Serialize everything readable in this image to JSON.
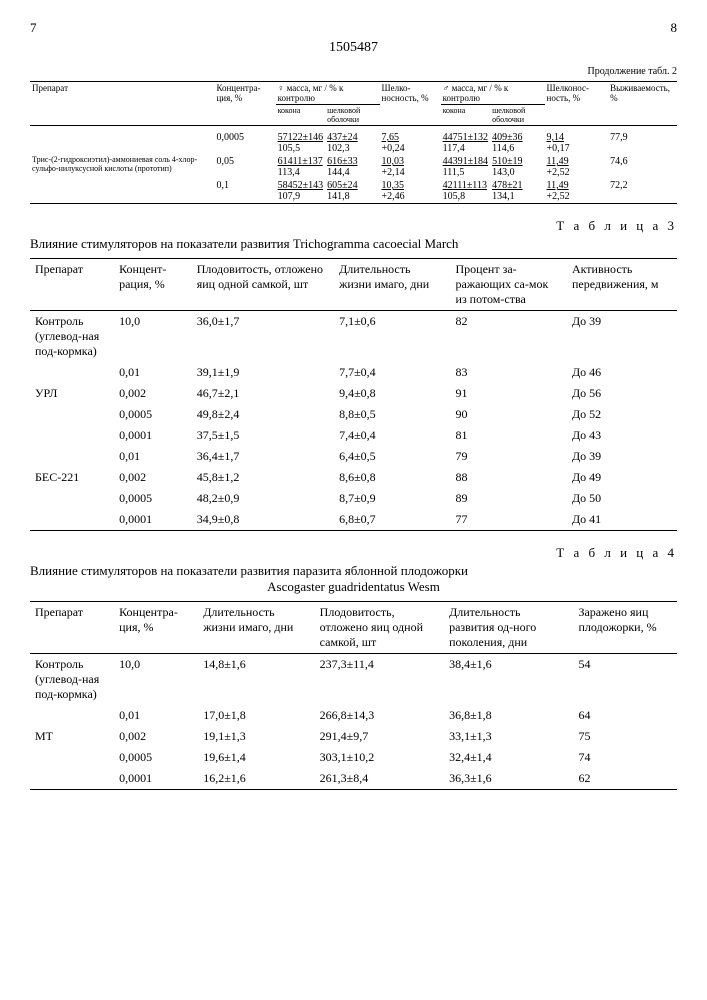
{
  "header": {
    "page_left": "7",
    "page_right": "8",
    "doc_number": "1505487",
    "continuation": "Продолжение табл. 2"
  },
  "table2": {
    "head": {
      "c1": "Препарат",
      "c2": "Концентра-ция, %",
      "c3": "♀ масса, мг",
      "c3b": "% к контролю",
      "c4": "Шелко-носность, %",
      "c5": "♂ масса, мг",
      "c5b": "% к контролю",
      "c6": "Шелконос-ность, %",
      "c7": "Выживаемость, %",
      "sub_kokona": "кокона",
      "sub_obol": "шелковой оболочки"
    },
    "drug_label": "Трис-(2-гидроксиэтил)-аммониевая соль 4-хлор-сульфо-нилуксусной кислоты (прототип)",
    "rows": [
      {
        "conc": "0,0005",
        "c3a": "57122±146",
        "c3b": "105,5",
        "c4a": "437±24",
        "c4b": "102,3",
        "c5": "7,65",
        "c5b": "+0,24",
        "c6a": "44751±132",
        "c6b": "117,4",
        "c7a": "409±36",
        "c7b": "114,6",
        "c8": "9,14",
        "c8b": "+0,17",
        "c9": "77,9"
      },
      {
        "conc": "0,05",
        "c3a": "61411±137",
        "c3b": "113,4",
        "c4a": "616±33",
        "c4b": "144,4",
        "c5": "10,03",
        "c5b": "+2,14",
        "c6a": "44391±184",
        "c6b": "111,5",
        "c7a": "510±19",
        "c7b": "143,0",
        "c8": "11,49",
        "c8b": "+2,52",
        "c9": "74,6"
      },
      {
        "conc": "0,1",
        "c3a": "58452±143",
        "c3b": "107,9",
        "c4a": "605±24",
        "c4b": "141,8",
        "c5": "10,35",
        "c5b": "+2,46",
        "c6a": "42111±113",
        "c6b": "105,8",
        "c7a": "478±21",
        "c7b": "134,1",
        "c8": "11,49",
        "c8b": "+2,52",
        "c9": "72,2"
      }
    ]
  },
  "table3": {
    "title": "Т а б л и ц а  3",
    "caption": "Влияние стимуляторов на показатели развития Trichogramma cacoecial March",
    "head": {
      "c1": "Препарат",
      "c2": "Концент-рация, %",
      "c3": "Плодовитость, отложено яиц одной самкой, шт",
      "c4": "Длительность жизни имаго, дни",
      "c5": "Процент за-ражающих са-мок из потом-ства",
      "c6": "Активность передвижения, м"
    },
    "groups": [
      {
        "label": "Контроль (углевод-ная под-кормка)",
        "rows": [
          {
            "conc": "10,0",
            "c3": "36,0±1,7",
            "c4": "7,1±0,6",
            "c5": "82",
            "c6": "До 39"
          }
        ]
      },
      {
        "label": "",
        "rows": [
          {
            "conc": "0,01",
            "c3": "39,1±1,9",
            "c4": "7,7±0,4",
            "c5": "83",
            "c6": "До 46"
          }
        ]
      },
      {
        "label": "УРЛ",
        "rows": [
          {
            "conc": "0,002",
            "c3": "46,7±2,1",
            "c4": "9,4±0,8",
            "c5": "91",
            "c6": "До 56"
          },
          {
            "conc": "0,0005",
            "c3": "49,8±2,4",
            "c4": "8,8±0,5",
            "c5": "90",
            "c6": "До 52"
          },
          {
            "conc": "0,0001",
            "c3": "37,5±1,5",
            "c4": "7,4±0,4",
            "c5": "81",
            "c6": "До 43"
          }
        ]
      },
      {
        "label": "",
        "rows": [
          {
            "conc": "0,01",
            "c3": "36,4±1,7",
            "c4": "6,4±0,5",
            "c5": "79",
            "c6": "До 39"
          }
        ]
      },
      {
        "label": "БЕС-221",
        "rows": [
          {
            "conc": "0,002",
            "c3": "45,8±1,2",
            "c4": "8,6±0,8",
            "c5": "88",
            "c6": "До 49"
          },
          {
            "conc": "0,0005",
            "c3": "48,2±0,9",
            "c4": "8,7±0,9",
            "c5": "89",
            "c6": "До 50"
          },
          {
            "conc": "0,0001",
            "c3": "34,9±0,8",
            "c4": "6,8±0,7",
            "c5": "77",
            "c6": "До 41"
          }
        ]
      }
    ]
  },
  "table4": {
    "title": "Т а б л и ц а  4",
    "caption_l1": "Влияние стимуляторов на показатели развития паразита яблонной плодожорки",
    "caption_l2": "Ascogaster guadridentatus Wesm",
    "head": {
      "c1": "Препарат",
      "c2": "Концентра-ция,    %",
      "c3": "Длительность жизни имаго, дни",
      "c4": "Плодовитость, отложено яиц одной самкой, шт",
      "c5": "Длительность развития од-ного поколения, дни",
      "c6": "Заражено яиц плодожорки, %"
    },
    "groups": [
      {
        "label": "Контроль (углевод-ная под-кормка)",
        "rows": [
          {
            "conc": "10,0",
            "c3": "14,8±1,6",
            "c4": "237,3±11,4",
            "c5": "38,4±1,6",
            "c6": "54"
          }
        ]
      },
      {
        "label": "",
        "rows": [
          {
            "conc": "0,01",
            "c3": "17,0±1,8",
            "c4": "266,8±14,3",
            "c5": "36,8±1,8",
            "c6": "64"
          }
        ]
      },
      {
        "label": "МТ",
        "rows": [
          {
            "conc": "0,002",
            "c3": "19,1±1,3",
            "c4": "291,4±9,7",
            "c5": "33,1±1,3",
            "c6": "75"
          },
          {
            "conc": "0,0005",
            "c3": "19,6±1,4",
            "c4": "303,1±10,2",
            "c5": "32,4±1,4",
            "c6": "74"
          },
          {
            "conc": "0,0001",
            "c3": "16,2±1,6",
            "c4": "261,3±8,4",
            "c5": "36,3±1,6",
            "c6": "62"
          }
        ]
      }
    ]
  }
}
